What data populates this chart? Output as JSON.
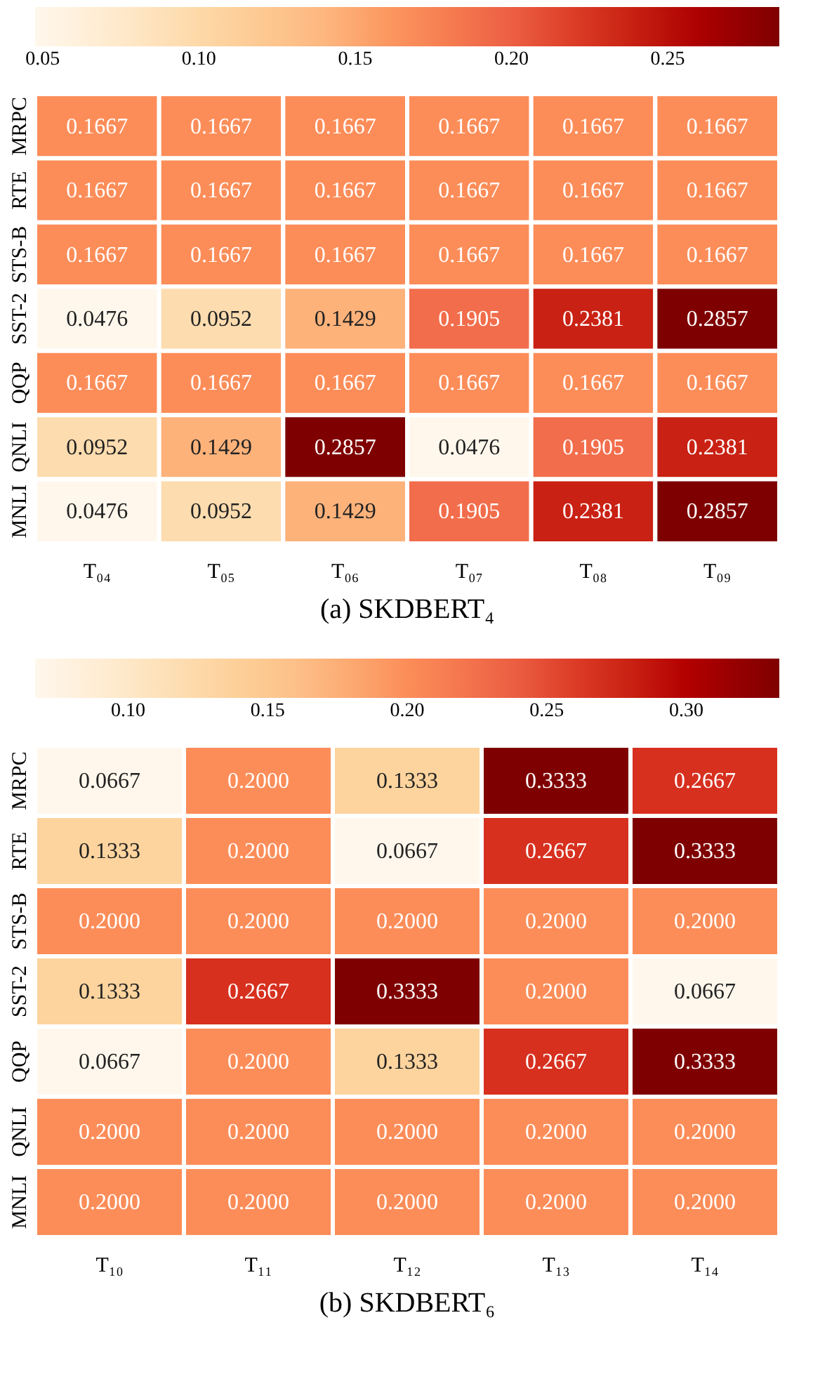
{
  "chart_data": [
    {
      "type": "heatmap",
      "title": "(a) SKDBERT₄",
      "categories": [
        "T₀₄",
        "T₀₅",
        "T₀₆",
        "T₀₇",
        "T₀₈",
        "T₀₉"
      ],
      "y_categories": [
        "MRPC",
        "RTE",
        "STS-B",
        "SST-2",
        "QQP",
        "QNLI",
        "MNLI"
      ],
      "cells": [
        [
          0.1667,
          0.1667,
          0.1667,
          0.1667,
          0.1667,
          0.1667
        ],
        [
          0.1667,
          0.1667,
          0.1667,
          0.1667,
          0.1667,
          0.1667
        ],
        [
          0.1667,
          0.1667,
          0.1667,
          0.1667,
          0.1667,
          0.1667
        ],
        [
          0.0476,
          0.0952,
          0.1429,
          0.1905,
          0.2381,
          0.2857
        ],
        [
          0.1667,
          0.1667,
          0.1667,
          0.1667,
          0.1667,
          0.1667
        ],
        [
          0.0952,
          0.1429,
          0.2857,
          0.0476,
          0.1905,
          0.2381
        ],
        [
          0.0476,
          0.0952,
          0.1429,
          0.1905,
          0.2381,
          0.2857
        ]
      ],
      "clim": [
        0.0476,
        0.2857
      ],
      "cticks": [
        0.05,
        {
          "value": 0.1,
          "label": "0.10"
        },
        0.15,
        {
          "value": 0.2,
          "label": "0.20"
        },
        0.25
      ],
      "data_labels": true
    },
    {
      "type": "heatmap",
      "title": "(b) SKDBERT₆",
      "categories": [
        "T₁₀",
        "T₁₁",
        "T₁₂",
        "T₁₃",
        "T₁₄"
      ],
      "y_categories": [
        "MRPC",
        "RTE",
        "STS-B",
        "SST-2",
        "QQP",
        "QNLI",
        "MNLI"
      ],
      "cells": [
        [
          0.0667,
          0.2,
          0.1333,
          0.3333,
          0.2667
        ],
        [
          0.1333,
          0.2,
          0.0667,
          0.2667,
          0.3333
        ],
        [
          0.2,
          0.2,
          0.2,
          0.2,
          0.2
        ],
        [
          0.1333,
          0.2667,
          0.3333,
          0.2,
          0.0667
        ],
        [
          0.0667,
          0.2,
          0.1333,
          0.2667,
          0.3333
        ],
        [
          0.2,
          0.2,
          0.2,
          0.2,
          0.2
        ],
        [
          0.2,
          0.2,
          0.2,
          0.2,
          0.2
        ]
      ],
      "cell_labels": [
        [
          "0.0667",
          "0.2000",
          "0.1333",
          "0.3333",
          "0.2667"
        ],
        [
          "0.1333",
          "0.2000",
          "0.0667",
          "0.2667",
          "0.3333"
        ],
        [
          "0.2000",
          "0.2000",
          "0.2000",
          "0.2000",
          "0.2000"
        ],
        [
          "0.1333",
          "0.2667",
          "0.3333",
          "0.2000",
          "0.0667"
        ],
        [
          "0.0667",
          "0.2000",
          "0.1333",
          "0.2667",
          "0.3333"
        ],
        [
          "0.2000",
          "0.2000",
          "0.2000",
          "0.2000",
          "0.2000"
        ],
        [
          "0.2000",
          "0.2000",
          "0.2000",
          "0.2000",
          "0.2000"
        ]
      ],
      "clim": [
        0.0667,
        0.3333
      ],
      "cticks": [
        {
          "value": 0.1,
          "label": "0.10"
        },
        0.15,
        {
          "value": 0.2,
          "label": "0.20"
        },
        0.25,
        {
          "value": 0.3,
          "label": "0.30"
        }
      ]
    }
  ]
}
